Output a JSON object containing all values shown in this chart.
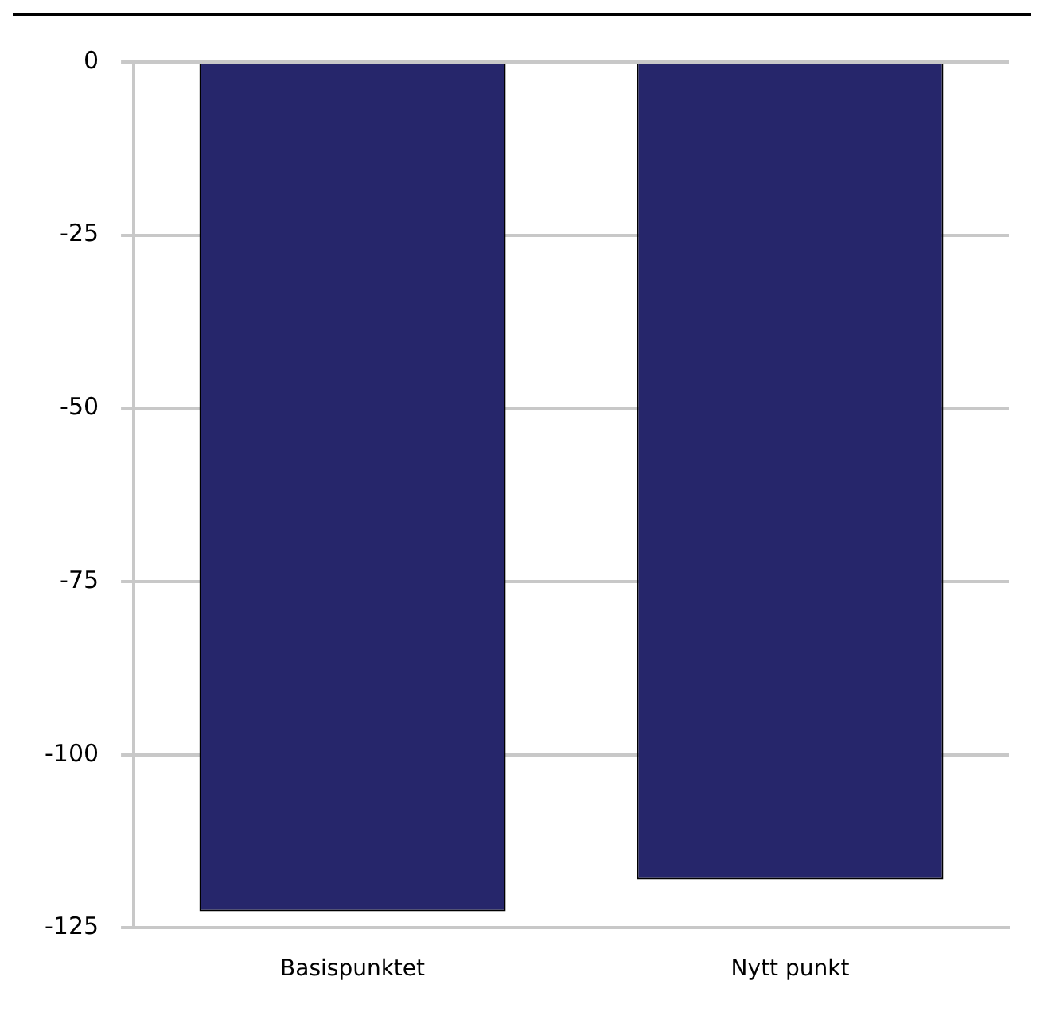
{
  "chart_data": {
    "type": "bar",
    "categories": [
      "Basispunktet",
      "Nytt punkt"
    ],
    "values": [
      -122.6,
      -118
    ],
    "color": "#26266b",
    "ylim": [
      -125,
      0
    ],
    "yticks": [
      0,
      -25,
      -50,
      -75,
      -100,
      -125
    ],
    "grid": "y",
    "legend": false
  }
}
